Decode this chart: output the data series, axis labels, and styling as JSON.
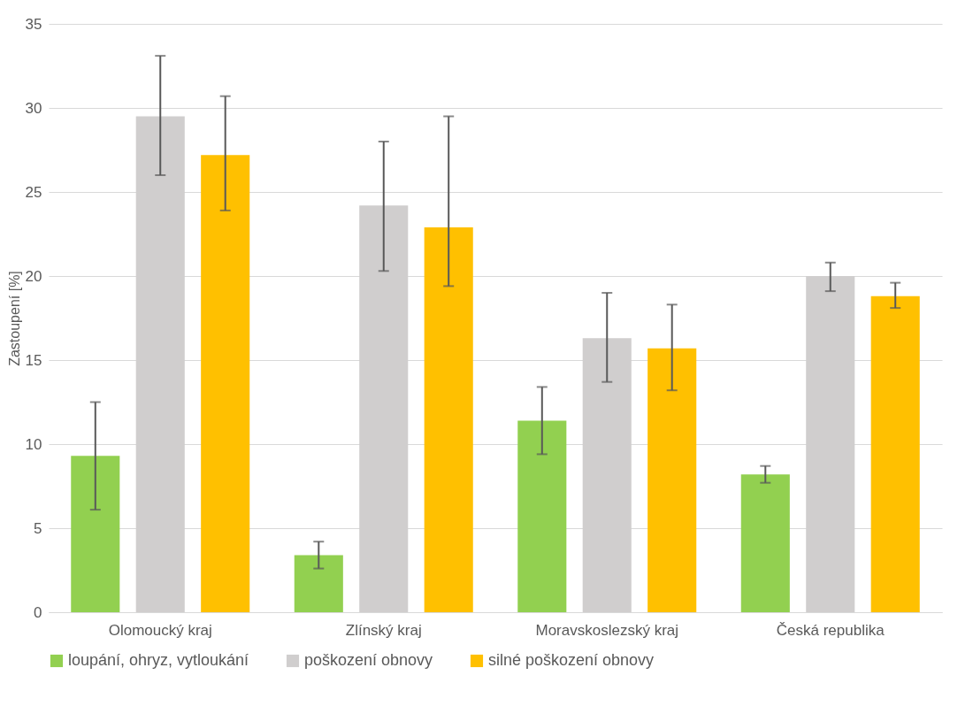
{
  "chart_data": {
    "type": "bar",
    "ylabel": "Zastoupení [%]",
    "categories": [
      "Olomoucký kraj",
      "Zlínský kraj",
      "Moravskoslezský kraj",
      "Česká republika"
    ],
    "series": [
      {
        "name": "loupání, ohryz, vytloukání",
        "color": "#92d050",
        "values": [
          9.3,
          3.4,
          11.4,
          8.2
        ],
        "errors": [
          [
            6.1,
            12.5
          ],
          [
            2.6,
            4.2
          ],
          [
            9.4,
            13.4
          ],
          [
            7.7,
            8.7
          ]
        ]
      },
      {
        "name": "poškození obnovy",
        "color": "#d0cece",
        "values": [
          29.5,
          24.2,
          16.3,
          20.0
        ],
        "errors": [
          [
            26.0,
            33.1
          ],
          [
            20.3,
            28.0
          ],
          [
            13.7,
            19.0
          ],
          [
            19.1,
            20.8
          ]
        ]
      },
      {
        "name": "silné poškození obnovy",
        "color": "#ffc000",
        "values": [
          27.2,
          22.9,
          15.7,
          18.8
        ],
        "errors": [
          [
            23.9,
            30.7
          ],
          [
            19.4,
            29.5
          ],
          [
            13.2,
            18.3
          ],
          [
            18.1,
            19.6
          ]
        ]
      }
    ],
    "ylim": [
      0,
      35
    ],
    "yticks": [
      0,
      5,
      10,
      15,
      20,
      25,
      30,
      35
    ],
    "grid": "y",
    "legend": "bottom"
  }
}
